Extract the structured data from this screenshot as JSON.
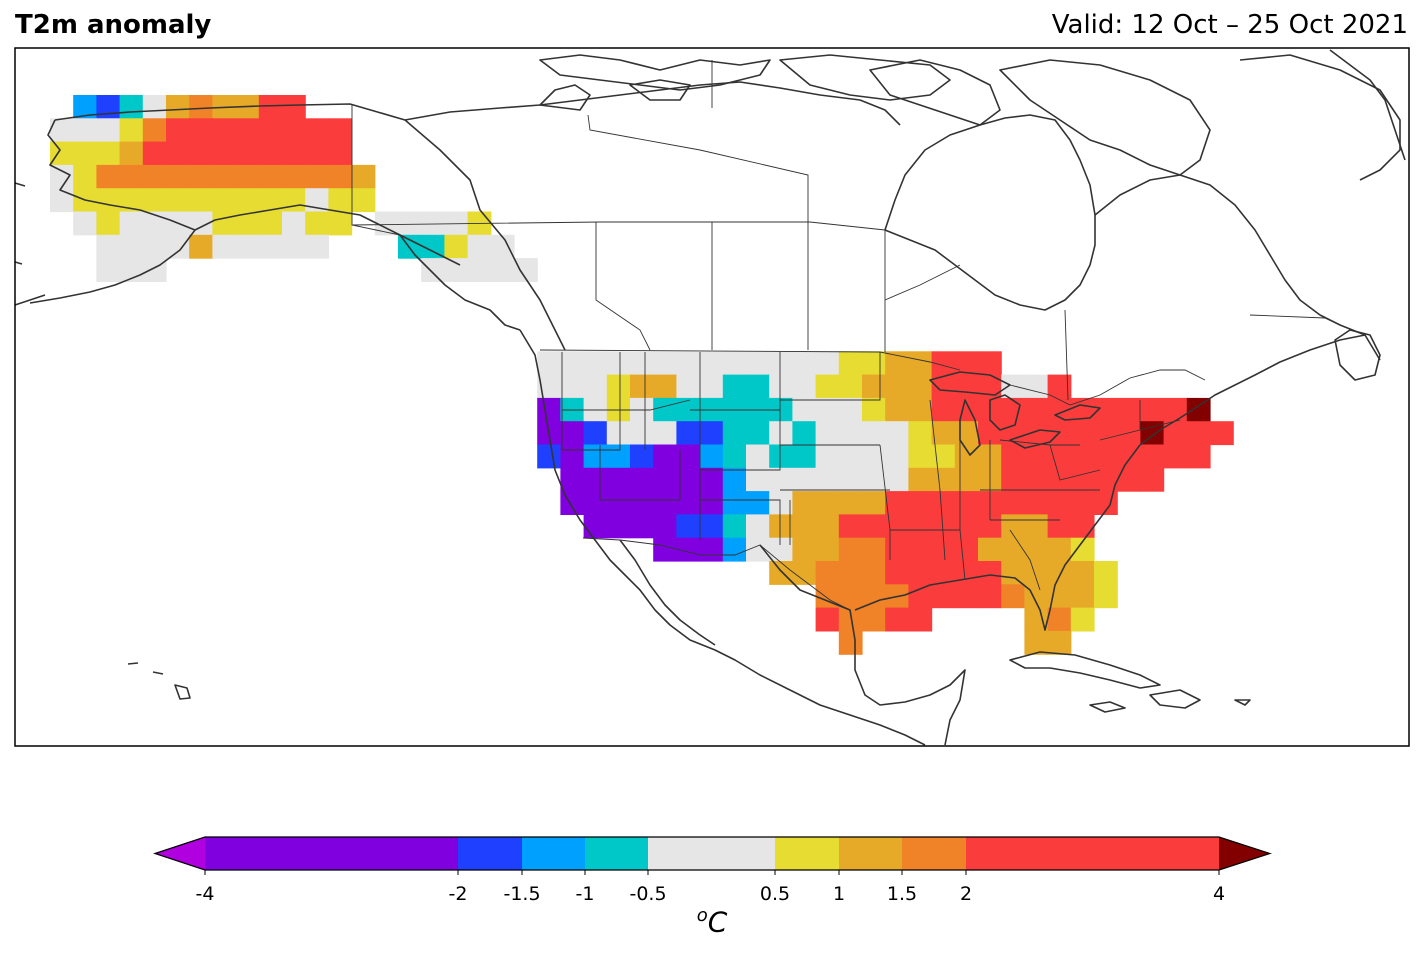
{
  "header": {
    "title": "T2m anomaly",
    "valid": "Valid: 12 Oct – 25 Oct 2021"
  },
  "colorbar": {
    "unit_base": "C",
    "unit_sup": "o",
    "ticks": [
      "-4",
      "-2",
      "-1.5",
      "-1",
      "-0.5",
      "0.5",
      "1",
      "1.5",
      "2",
      "4"
    ],
    "tick_values": [
      -4,
      -2,
      -1.5,
      -1,
      -0.5,
      0.5,
      1,
      1.5,
      2,
      4
    ],
    "colors": [
      "#8000e0",
      "#2040ff",
      "#00a0ff",
      "#00c8c8",
      "#e6e6e6",
      "#e6dc32",
      "#e6aa28",
      "#f08228",
      "#fa3c3c"
    ],
    "under_color": "#b000e0",
    "over_color": "#820000"
  },
  "map_legend": {
    "palette": {
      "P": "#8000e0",
      "B": "#2040ff",
      "L": "#00a0ff",
      "T": "#00c8c8",
      "G": "#e6e6e6",
      "Y": "#e6dc32",
      "O": "#e6aa28",
      "R": "#f08228",
      "D": "#fa3c3c",
      "M": "#820000"
    }
  }
}
